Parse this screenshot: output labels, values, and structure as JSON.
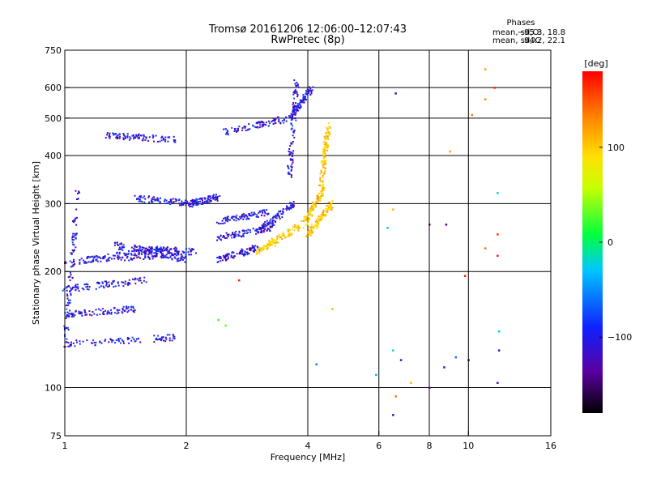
{
  "chart_data": {
    "type": "scatter",
    "title": "Tromsø 20161206 12:06:00–12:07:43",
    "subtitle": "RwPretec (8p)",
    "xlabel": "Frequency [MHz]",
    "ylabel": "Stationary phase Virtual Height [km]",
    "x_scale": "log",
    "y_scale": "log",
    "xlim": [
      1,
      16
    ],
    "ylim": [
      75,
      750
    ],
    "x_ticks": [
      1,
      2,
      4,
      6,
      8,
      10,
      16
    ],
    "x_tick_labels": [
      "1",
      "2",
      "4",
      "6",
      "8",
      "10",
      "16"
    ],
    "x_gridlines": [
      2,
      4,
      6,
      8,
      10
    ],
    "y_ticks": [
      75,
      100,
      200,
      300,
      400,
      500,
      600,
      750
    ],
    "y_tick_labels": [
      "75",
      "100",
      "200",
      "300",
      "400",
      "500",
      "600",
      "750"
    ],
    "y_gridlines": [
      100,
      200,
      300,
      400,
      500,
      600
    ],
    "phase_box": {
      "title": "Phases",
      "line_o_label": "mean, sd,O:",
      "line_o_values": "−95.3, 18.8",
      "line_x_label": "mean, sd,X:",
      "line_x_values": "94.2, 22.1"
    },
    "colorbar": {
      "label": "[deg]",
      "min": -180,
      "max": 180,
      "ticks": [
        100,
        0,
        -100
      ],
      "tick_labels": [
        "100",
        "0",
        "−100"
      ]
    },
    "series": [
      {
        "name": "O",
        "note": "main echo population, phase around -95 deg (blue/purple)",
        "traces": [
          {
            "x": [
              1.0,
              1.08
            ],
            "y": [
              130,
              330
            ]
          },
          {
            "x": [
              1.0,
              1.8
            ],
            "y": [
              210,
              230
            ]
          },
          {
            "x": [
              1.15,
              2.0
            ],
            "y": [
              215,
              222
            ]
          },
          {
            "x": [
              1.3,
              2.0
            ],
            "y": [
              235,
              215
            ]
          },
          {
            "x": [
              1.45,
              2.1
            ],
            "y": [
              230,
              225
            ]
          },
          {
            "x": [
              1.0,
              1.6
            ],
            "y": [
              180,
              190
            ]
          },
          {
            "x": [
              1.0,
              1.5
            ],
            "y": [
              155,
              160
            ]
          },
          {
            "x": [
              1.0,
              1.9
            ],
            "y": [
              130,
              135
            ]
          },
          {
            "x": [
              1.25,
              1.9
            ],
            "y": [
              450,
              440
            ]
          },
          {
            "x": [
              1.5,
              2.1
            ],
            "y": [
              310,
              300
            ]
          },
          {
            "x": [
              2.05,
              2.4
            ],
            "y": [
              300,
              312
            ]
          },
          {
            "x": [
              2.4,
              3.0
            ],
            "y": [
              215,
              230
            ]
          },
          {
            "x": [
              2.4,
              3.3
            ],
            "y": [
              245,
              260
            ]
          },
          {
            "x": [
              2.4,
              3.2
            ],
            "y": [
              270,
              285
            ]
          },
          {
            "x": [
              2.5,
              3.6
            ],
            "y": [
              460,
              500
            ]
          },
          {
            "x": [
              3.1,
              3.7
            ],
            "y": [
              260,
              300
            ]
          },
          {
            "x": [
              3.6,
              3.75
            ],
            "y": [
              350,
              620
            ]
          },
          {
            "x": [
              3.6,
              4.1
            ],
            "y": [
              500,
              600
            ]
          }
        ]
      },
      {
        "name": "X",
        "note": "echo trace with phase around +94 deg (yellow/orange)",
        "traces": [
          {
            "x": [
              3.0,
              3.9
            ],
            "y": [
              225,
              265
            ]
          },
          {
            "x": [
              3.9,
              4.4
            ],
            "y": [
              265,
              330
            ]
          },
          {
            "x": [
              4.3,
              4.5
            ],
            "y": [
              330,
              480
            ]
          },
          {
            "x": [
              4.0,
              4.6
            ],
            "y": [
              250,
              300
            ]
          }
        ]
      }
    ],
    "scattered_points": [
      {
        "x": 2.7,
        "y": 190,
        "deg": 170
      },
      {
        "x": 2.4,
        "y": 150,
        "deg": 20
      },
      {
        "x": 2.5,
        "y": 145,
        "deg": 30
      },
      {
        "x": 4.6,
        "y": 160,
        "deg": 110
      },
      {
        "x": 4.2,
        "y": 115,
        "deg": -60
      },
      {
        "x": 5.9,
        "y": 108,
        "deg": -40
      },
      {
        "x": 6.3,
        "y": 260,
        "deg": -20
      },
      {
        "x": 6.5,
        "y": 290,
        "deg": 110
      },
      {
        "x": 6.6,
        "y": 580,
        "deg": -120
      },
      {
        "x": 6.5,
        "y": 125,
        "deg": -20
      },
      {
        "x": 6.8,
        "y": 118,
        "deg": -120
      },
      {
        "x": 6.6,
        "y": 95,
        "deg": 140
      },
      {
        "x": 6.5,
        "y": 85,
        "deg": -120
      },
      {
        "x": 7.2,
        "y": 103,
        "deg": 110
      },
      {
        "x": 8.0,
        "y": 265,
        "deg": -150
      },
      {
        "x": 8.0,
        "y": 100,
        "deg": -130
      },
      {
        "x": 8.8,
        "y": 265,
        "deg": -130
      },
      {
        "x": 8.7,
        "y": 113,
        "deg": -120
      },
      {
        "x": 9.3,
        "y": 120,
        "deg": -60
      },
      {
        "x": 9.8,
        "y": 195,
        "deg": 170
      },
      {
        "x": 10.0,
        "y": 118,
        "deg": -160
      },
      {
        "x": 11.0,
        "y": 670,
        "deg": 120
      },
      {
        "x": 11.0,
        "y": 560,
        "deg": 130
      },
      {
        "x": 11.0,
        "y": 230,
        "deg": 140
      },
      {
        "x": 11.6,
        "y": 600,
        "deg": 170
      },
      {
        "x": 11.8,
        "y": 320,
        "deg": -20
      },
      {
        "x": 11.8,
        "y": 250,
        "deg": 160
      },
      {
        "x": 11.8,
        "y": 220,
        "deg": 170
      },
      {
        "x": 11.9,
        "y": 140,
        "deg": -30
      },
      {
        "x": 11.9,
        "y": 125,
        "deg": -110
      },
      {
        "x": 11.8,
        "y": 103,
        "deg": -120
      },
      {
        "x": 10.2,
        "y": 510,
        "deg": 140
      },
      {
        "x": 9.0,
        "y": 410,
        "deg": 120
      }
    ]
  }
}
